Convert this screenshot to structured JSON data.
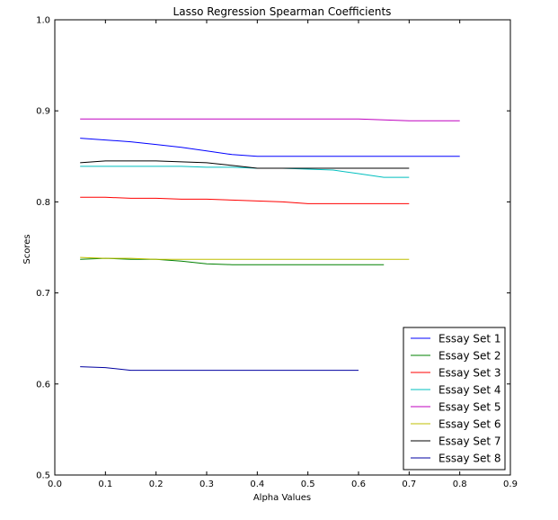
{
  "chart_data": {
    "type": "line",
    "title": "Lasso Regression Spearman Coefficients",
    "xlabel": "Alpha Values",
    "ylabel": "Scores",
    "xlim": [
      0.0,
      0.9
    ],
    "ylim": [
      0.5,
      1.0
    ],
    "xticks": [
      "0.0",
      "0.1",
      "0.2",
      "0.3",
      "0.4",
      "0.5",
      "0.6",
      "0.7",
      "0.8",
      "0.9"
    ],
    "yticks": [
      "0.5",
      "0.6",
      "0.7",
      "0.8",
      "0.9",
      "1.0"
    ],
    "grid": false,
    "legend_position": "bottom-right",
    "series": [
      {
        "name": "Essay Set 1",
        "color": "#0000ff",
        "x": [
          0.05,
          0.1,
          0.15,
          0.2,
          0.25,
          0.3,
          0.35,
          0.4,
          0.45,
          0.5,
          0.55,
          0.6,
          0.65,
          0.7,
          0.75,
          0.8
        ],
        "y": [
          0.87,
          0.868,
          0.866,
          0.863,
          0.86,
          0.856,
          0.852,
          0.85,
          0.85,
          0.85,
          0.85,
          0.85,
          0.85,
          0.85,
          0.85,
          0.85
        ]
      },
      {
        "name": "Essay Set 2",
        "color": "#008000",
        "x": [
          0.05,
          0.1,
          0.15,
          0.2,
          0.25,
          0.3,
          0.35,
          0.4,
          0.45,
          0.5,
          0.55,
          0.6,
          0.65
        ],
        "y": [
          0.737,
          0.738,
          0.737,
          0.737,
          0.735,
          0.732,
          0.731,
          0.731,
          0.731,
          0.731,
          0.731,
          0.731,
          0.731
        ]
      },
      {
        "name": "Essay Set 3",
        "color": "#ff0000",
        "x": [
          0.05,
          0.1,
          0.15,
          0.2,
          0.25,
          0.3,
          0.35,
          0.4,
          0.45,
          0.5,
          0.55,
          0.6,
          0.65,
          0.7
        ],
        "y": [
          0.805,
          0.805,
          0.804,
          0.804,
          0.803,
          0.803,
          0.802,
          0.801,
          0.8,
          0.798,
          0.798,
          0.798,
          0.798,
          0.798
        ]
      },
      {
        "name": "Essay Set 4",
        "color": "#00bfbf",
        "x": [
          0.05,
          0.1,
          0.15,
          0.2,
          0.25,
          0.3,
          0.35,
          0.4,
          0.45,
          0.5,
          0.55,
          0.6,
          0.65,
          0.7
        ],
        "y": [
          0.839,
          0.839,
          0.839,
          0.839,
          0.839,
          0.838,
          0.838,
          0.837,
          0.837,
          0.836,
          0.835,
          0.831,
          0.827,
          0.827
        ]
      },
      {
        "name": "Essay Set 5",
        "color": "#bf00bf",
        "x": [
          0.05,
          0.1,
          0.15,
          0.2,
          0.25,
          0.3,
          0.35,
          0.4,
          0.45,
          0.5,
          0.55,
          0.6,
          0.65,
          0.7,
          0.75,
          0.8
        ],
        "y": [
          0.891,
          0.891,
          0.891,
          0.891,
          0.891,
          0.891,
          0.891,
          0.891,
          0.891,
          0.891,
          0.891,
          0.891,
          0.89,
          0.889,
          0.889,
          0.889
        ]
      },
      {
        "name": "Essay Set 6",
        "color": "#bfbf00",
        "x": [
          0.05,
          0.1,
          0.15,
          0.2,
          0.25,
          0.3,
          0.35,
          0.4,
          0.45,
          0.5,
          0.55,
          0.6,
          0.65,
          0.7
        ],
        "y": [
          0.739,
          0.738,
          0.738,
          0.737,
          0.737,
          0.737,
          0.737,
          0.737,
          0.737,
          0.737,
          0.737,
          0.737,
          0.737,
          0.737
        ]
      },
      {
        "name": "Essay Set 7",
        "color": "#000000",
        "x": [
          0.05,
          0.1,
          0.15,
          0.2,
          0.25,
          0.3,
          0.35,
          0.4,
          0.45,
          0.5,
          0.55,
          0.6,
          0.65,
          0.7
        ],
        "y": [
          0.843,
          0.845,
          0.845,
          0.845,
          0.844,
          0.843,
          0.84,
          0.837,
          0.837,
          0.837,
          0.837,
          0.837,
          0.837,
          0.837
        ]
      },
      {
        "name": "Essay Set 8",
        "color": "#0000a0",
        "x": [
          0.05,
          0.1,
          0.15,
          0.2,
          0.25,
          0.3,
          0.35,
          0.4,
          0.45,
          0.5,
          0.55,
          0.6
        ],
        "y": [
          0.619,
          0.618,
          0.615,
          0.615,
          0.615,
          0.615,
          0.615,
          0.615,
          0.615,
          0.615,
          0.615,
          0.615
        ]
      }
    ]
  }
}
